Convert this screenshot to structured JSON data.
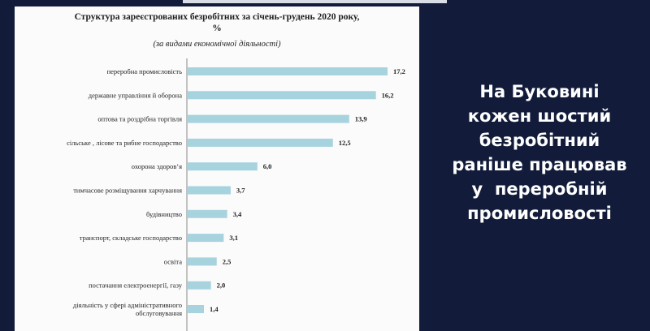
{
  "chart_data": {
    "type": "bar",
    "orientation": "horizontal",
    "title_line1": "Структура зареєстрованих безробітних за січень-грудень 2020  року,",
    "title_line2": "%",
    "subtitle": "(за видами економічної діяльності)",
    "categories": [
      "переробна промисловість",
      "державне управління й оборона",
      "оптова та роздрібна торгівля",
      "сільське , лісове та рибне господарство",
      "охорона здоров’я",
      "тимчасове розміщування  харчування",
      "будівництво",
      "транспорт, складське господарство",
      "освіта",
      "постачання електроенергії, газу",
      "діяльність у сфері адміністративного обслуговування"
    ],
    "category_lines": [
      [
        "переробна промисловість"
      ],
      [
        "державне управління й оборона"
      ],
      [
        "оптова та роздрібна торгівля"
      ],
      [
        "сільське , лісове та рибне господарство"
      ],
      [
        "охорона здоров’я"
      ],
      [
        "тимчасове розміщування  харчування"
      ],
      [
        "будівництво"
      ],
      [
        "транспорт, складське господарство"
      ],
      [
        "освіта"
      ],
      [
        "постачання електроенергії, газу"
      ],
      [
        "діяльність у сфері адміністративного",
        "обслуговування"
      ]
    ],
    "values": [
      17.2,
      16.2,
      13.9,
      12.5,
      6.0,
      3.7,
      3.4,
      3.1,
      2.5,
      2.0,
      1.4
    ],
    "value_labels": [
      "17,2",
      "16,2",
      "13,9",
      "12,5",
      "6,0",
      "3,7",
      "3,4",
      "3,1",
      "2,5",
      "2,0",
      "1,4"
    ],
    "xlim": [
      0,
      20
    ],
    "grid": false,
    "legend": "none",
    "bar_color": "#a7d3df"
  },
  "headline": {
    "lines": [
      "На Буковині",
      "кожен шостий",
      "безробітний",
      "раніше працював",
      "у  переробній",
      "промисловості"
    ]
  },
  "colors": {
    "background": "#121c3a",
    "card": "#fbfbfb",
    "headline_text": "#ffffff"
  }
}
